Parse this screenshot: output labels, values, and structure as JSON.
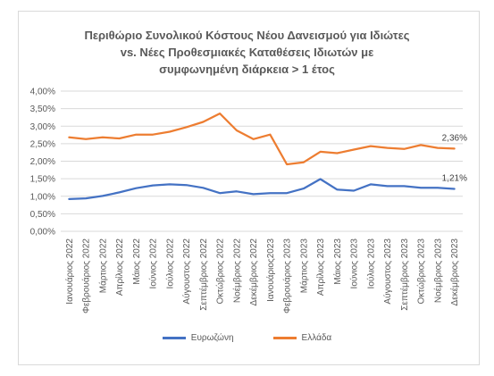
{
  "chart_data": {
    "type": "line",
    "title_lines": [
      "Περιθώριο Συνολικού Κόστους Νέου Δανεισμού για Ιδιώτες",
      "vs. Νέες Προθεσμιακές Καταθέσεις Ιδιωτών με",
      "συμφωνημένη διάρκεια > 1 έτος"
    ],
    "categories": [
      "Ιανουάριος 2022",
      "Φεβρουάριος 2022",
      "Μάρτιος 2022",
      "Απρίλιος 2022",
      "Μάιος 2022",
      "Ιούνιος 2022",
      "Ιούλιος 2022",
      "Αύγουστος 2022",
      "Σεπτέμβριος 2022",
      "Οκτώβριος 2022",
      "Νοέμβριος 2022",
      "Δεκέμβριος 2022",
      "Ιανουάριος2023",
      "Φεβρουάριος 2023",
      "Μάρτιος 2023",
      "Απρίλιος 2023",
      "Μάιος 2023",
      "Ιούνιος 2023",
      "Ιούλιος 2023",
      "Αύγουστος 2023",
      "Σεπτέμβριος 2023",
      "Οκτώβριος 2023",
      "Νοέμβριος 2023",
      "Δεκέμβριος 2023"
    ],
    "series": [
      {
        "name": "Ευρωζώνη",
        "color": "#4472c4",
        "values": [
          0.92,
          0.94,
          1.01,
          1.11,
          1.23,
          1.31,
          1.34,
          1.32,
          1.24,
          1.09,
          1.14,
          1.06,
          1.09,
          1.09,
          1.22,
          1.49,
          1.19,
          1.16,
          1.34,
          1.29,
          1.29,
          1.24,
          1.24,
          1.21
        ],
        "end_label": "1,21%"
      },
      {
        "name": "Ελλάδα",
        "color": "#ed7d31",
        "values": [
          2.68,
          2.63,
          2.68,
          2.65,
          2.76,
          2.76,
          2.84,
          2.97,
          3.12,
          3.36,
          2.88,
          2.63,
          2.76,
          1.91,
          1.97,
          2.27,
          2.23,
          2.33,
          2.43,
          2.38,
          2.35,
          2.46,
          2.38,
          2.36
        ],
        "end_label": "2,36%"
      }
    ],
    "y_ticks": [
      "0,00%",
      "0,50%",
      "1,00%",
      "1,50%",
      "2,00%",
      "2,50%",
      "3,00%",
      "3,50%",
      "4,00%"
    ],
    "ylim": [
      0,
      4
    ],
    "grid": true,
    "legend_position": "bottom"
  }
}
